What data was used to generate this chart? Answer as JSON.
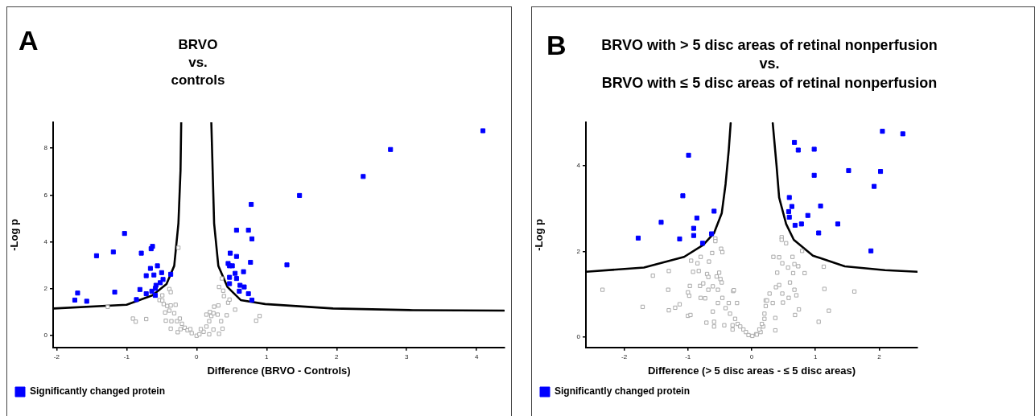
{
  "chart_data": [
    {
      "type": "scatter",
      "title": "BRVO\nvs.\ncontrols",
      "xlabel": "Difference (BRVO - Controls)",
      "ylabel": "-Log p",
      "annotations": [
        "A"
      ],
      "xlim": [
        -2.05,
        4.4
      ],
      "xticks": [
        -2,
        -1,
        0,
        1,
        2,
        3,
        4
      ],
      "ylim": [
        -0.5,
        9.1
      ],
      "yticks": [
        0,
        2,
        4,
        6,
        8
      ],
      "grid": false,
      "legend": "bottom",
      "series": [
        {
          "name": "Significantly changed protein",
          "color": "#0000ff",
          "marker": "square",
          "x": [
            -1.74,
            -1.7,
            -1.57,
            -1.43,
            -1.19,
            -1.17,
            -1.03,
            -0.86,
            -0.81,
            -0.79,
            -0.72,
            -0.72,
            -0.66,
            -0.65,
            -0.63,
            -0.64,
            -0.61,
            -0.59,
            -0.58,
            -0.59,
            -0.56,
            -0.52,
            -0.5,
            -0.48,
            -0.37,
            0.48,
            0.57,
            0.74,
            0.78,
            0.79,
            0.57,
            0.45,
            0.47,
            0.51,
            0.77,
            0.55,
            0.67,
            0.47,
            0.57,
            0.47,
            0.62,
            0.68,
            0.61,
            0.74,
            0.79,
            1.29,
            1.47,
            2.38,
            2.77,
            4.09
          ],
          "values": [
            1.52,
            1.82,
            1.47,
            3.41,
            3.57,
            1.86,
            4.36,
            1.54,
            1.97,
            3.52,
            2.56,
            1.79,
            2.87,
            3.71,
            3.81,
            1.9,
            2.59,
            2.02,
            2.15,
            1.72,
            2.98,
            2.26,
            2.69,
            2.4,
            2.62,
            3.52,
            4.5,
            4.5,
            5.6,
            4.13,
            3.38,
            3.08,
            2.98,
            2.98,
            3.13,
            2.66,
            2.73,
            2.49,
            2.44,
            2.22,
            2.15,
            2.08,
            1.9,
            1.79,
            1.52,
            3.02,
            5.98,
            6.79,
            7.94,
            8.74
          ]
        },
        {
          "color": "#aaaaaa",
          "marker": "square",
          "x": [
            -1.27,
            -0.91,
            -0.87,
            -0.72,
            -0.53,
            -0.49,
            -0.49,
            -0.39,
            -0.37,
            -0.26,
            -0.42,
            -0.37,
            -0.3,
            -0.45,
            -0.39,
            -0.44,
            -0.37,
            -0.27,
            -0.32,
            -0.24,
            -0.21,
            -0.17,
            -0.13,
            -0.07,
            0.0,
            0.04,
            0.1,
            0.14,
            0.18,
            0.21,
            0.24,
            0.14,
            0.25,
            0.31,
            0.32,
            0.36,
            0.38,
            0.39,
            0.45,
            0.55,
            0.43,
            0.37,
            0.32,
            0.24,
            0.18,
            0.85,
            0.9,
            0.35,
            -0.28,
            -0.23,
            -0.09,
            0.06,
            -0.36,
            -0.47,
            0.19,
            0.3,
            0.47
          ],
          "values": [
            1.23,
            0.73,
            0.6,
            0.71,
            1.52,
            1.5,
            1.72,
            1.99,
            1.86,
            3.75,
            1.27,
            1.29,
            1.32,
            0.99,
            1.07,
            0.64,
            0.3,
            0.15,
            0.96,
            0.73,
            0.51,
            0.34,
            0.23,
            0.11,
            0.0,
            0.06,
            0.17,
            0.39,
            0.62,
            0.84,
            0.96,
            0.9,
            1.24,
            1.29,
            2.08,
            2.44,
            1.92,
            1.69,
            1.41,
            1.11,
            0.87,
            0.3,
            0.08,
            0.26,
            0.06,
            0.64,
            0.84,
            0.62,
            0.62,
            0.28,
            0.28,
            0.28,
            0.62,
            1.35,
            1.01,
            0.9,
            1.54
          ]
        },
        {
          "type": "line",
          "color": "#000000",
          "marker": "none",
          "x": [
            -2.04,
            -1.0,
            -0.63,
            -0.43,
            -0.32,
            -0.26,
            -0.23,
            -0.22
          ],
          "values": [
            1.16,
            1.32,
            1.72,
            2.2,
            2.98,
            4.79,
            7.04,
            9.1
          ]
        },
        {
          "type": "line",
          "color": "#000000",
          "marker": "none",
          "x": [
            0.21,
            0.25,
            0.31,
            0.44,
            0.63,
            0.98,
            1.95,
            3.09,
            4.39
          ],
          "values": [
            9.1,
            4.79,
            2.98,
            2.08,
            1.52,
            1.35,
            1.16,
            1.09,
            1.07
          ]
        }
      ]
    },
    {
      "type": "scatter",
      "title": "BRVO with > 5 disc areas of retinal nonperfusion\nvs.\nBRVO with ≤ 5 disc areas of retinal nonperfusion",
      "xlabel": "Difference (> 5 disc areas - ≤ 5 disc areas)",
      "ylabel": "-Log p",
      "annotations": [
        "B"
      ],
      "xlim": [
        -2.6,
        2.6
      ],
      "xticks": [
        -2,
        -1,
        0,
        1,
        2
      ],
      "ylim": [
        -0.25,
        5.02
      ],
      "yticks": [
        0,
        2,
        4
      ],
      "grid": false,
      "legend": "bottom",
      "series": [
        {
          "name": "Significantly changed protein",
          "color": "#0000ff",
          "marker": "square",
          "x": [
            -0.99,
            -1.08,
            -0.59,
            -0.86,
            -1.42,
            -0.91,
            -0.91,
            -0.63,
            -1.78,
            -1.13,
            -0.77,
            0.67,
            0.73,
            0.98,
            2.05,
            2.37,
            1.52,
            2.02,
            0.98,
            1.92,
            0.59,
            0.63,
            1.08,
            0.58,
            0.59,
            0.88,
            0.68,
            0.78,
            1.35,
            1.05,
            1.87
          ],
          "values": [
            4.25,
            3.3,
            2.94,
            2.78,
            2.68,
            2.54,
            2.37,
            2.41,
            2.31,
            2.29,
            2.19,
            4.55,
            4.37,
            4.39,
            4.81,
            4.75,
            3.89,
            3.87,
            3.78,
            3.52,
            3.26,
            3.05,
            3.06,
            2.93,
            2.8,
            2.84,
            2.61,
            2.64,
            2.64,
            2.43,
            2.01
          ]
        },
        {
          "color": "#aaaaaa",
          "marker": "square",
          "x": [
            -2.34,
            -1.71,
            -1.55,
            -1.31,
            -1.3,
            -1.3,
            -1.2,
            -1.13,
            -1.0,
            -0.98,
            -0.97,
            -1.0,
            -0.96,
            -0.95,
            -0.92,
            -0.85,
            -0.83,
            -0.8,
            -0.81,
            -0.8,
            -0.76,
            -0.73,
            -0.71,
            -0.7,
            -0.68,
            -0.67,
            -0.68,
            -0.62,
            -0.61,
            -0.61,
            -0.59,
            -0.59,
            -0.55,
            -0.53,
            -0.51,
            -0.49,
            -0.48,
            -0.46,
            -0.47,
            -0.57,
            -0.57,
            -0.53,
            -0.46,
            -0.43,
            -0.41,
            -0.36,
            -0.34,
            -0.3,
            -0.29,
            -0.26,
            -0.22,
            -0.18,
            -0.13,
            -0.09,
            -0.05,
            0.01,
            0.07,
            0.14,
            0.18,
            0.2,
            0.22,
            -0.28,
            -0.23,
            -0.3,
            0.08,
            0.12,
            0.16,
            0.2,
            0.22,
            0.24,
            0.28,
            0.33,
            0.37,
            0.38,
            0.43,
            0.48,
            0.49,
            0.37,
            0.4,
            0.48,
            0.57,
            0.6,
            0.58,
            0.65,
            0.67,
            0.73,
            0.67,
            0.7,
            0.74,
            0.68,
            0.83,
            0.34,
            0.43,
            0.47,
            0.47,
            0.54,
            0.64,
            0.79,
            1.13,
            1.14,
            1.21,
            1.05,
            1.61
          ],
          "values": [
            1.1,
            0.7,
            1.43,
            1.1,
            1.54,
            0.62,
            0.68,
            0.76,
            1.04,
            0.96,
            1.19,
            0.49,
            0.51,
            1.78,
            1.52,
            1.72,
            1.54,
            1.87,
            1.19,
            0.91,
            1.25,
            0.9,
            0.33,
            1.47,
            1.4,
            1.76,
            1.1,
            1.96,
            1.18,
            0.59,
            0.35,
            0.24,
            1.41,
            1.1,
            1.5,
            1.35,
            2.06,
            1.98,
            1.27,
            2.3,
            2.24,
            0.79,
            0.91,
            0.27,
            0.67,
            0.79,
            0.54,
            0.17,
            1.07,
            0.42,
            0.3,
            0.24,
            0.17,
            0.11,
            0.04,
            0.02,
            0.06,
            0.11,
            0.24,
            0.42,
            0.85,
            1.09,
            0.79,
            0.27,
            0.05,
            0.17,
            0.3,
            0.54,
            0.72,
            0.85,
            1.01,
            0.79,
            0.44,
            1.16,
            1.21,
            1.01,
            0.8,
            0.15,
            1.5,
            1.72,
            1.62,
            1.27,
            0.91,
            1.49,
            1.7,
            1.65,
            1.1,
            0.97,
            0.64,
            0.51,
            1.49,
            1.87,
            1.86,
            2.33,
            2.27,
            2.19,
            1.87,
            2.01,
            1.64,
            1.12,
            0.61,
            0.35,
            1.06
          ]
        },
        {
          "type": "line",
          "color": "#000000",
          "marker": "none",
          "x": [
            -2.6,
            -1.69,
            -1.06,
            -0.76,
            -0.59,
            -0.47,
            -0.41,
            -0.36,
            -0.33
          ],
          "values": [
            1.52,
            1.62,
            1.87,
            2.15,
            2.43,
            2.89,
            3.57,
            4.37,
            5.0
          ]
        },
        {
          "type": "line",
          "color": "#000000",
          "marker": "none",
          "x": [
            0.33,
            0.39,
            0.43,
            0.54,
            0.66,
            0.96,
            1.46,
            2.09,
            2.6
          ],
          "values": [
            5.0,
            4.0,
            3.26,
            2.64,
            2.27,
            1.9,
            1.65,
            1.56,
            1.52
          ]
        }
      ]
    }
  ]
}
